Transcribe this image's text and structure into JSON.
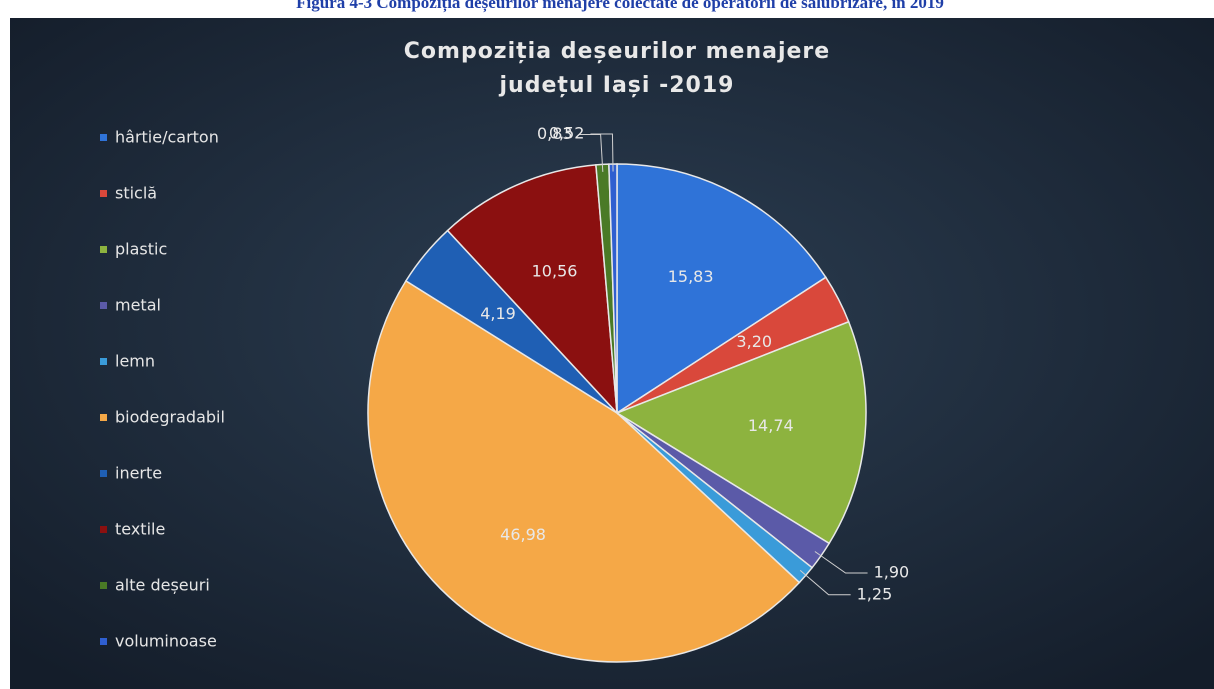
{
  "caption": "Figura 4-3 Compoziția deșeurilor menajere colectate de operatorii de salubrizare, în 2019",
  "chart_data": {
    "type": "pie",
    "title": [
      "Compoziția deșeurilor menajere",
      "județul Iași -2019"
    ],
    "categories": [
      "hârtie/carton",
      "sticlă",
      "plastic",
      "metal",
      "lemn",
      "biodegradabil",
      "inerte",
      "textile",
      "alte deșeuri",
      "voluminoase"
    ],
    "values": [
      15.83,
      3.2,
      14.74,
      1.9,
      1.25,
      46.98,
      4.19,
      10.56,
      0.83,
      0.52
    ],
    "value_labels": [
      "15,83",
      "3,20",
      "14,74",
      "1,90",
      "1,25",
      "46,98",
      "4,19",
      "10,56",
      "0,83",
      "0,52"
    ],
    "colors": [
      "#2f73d8",
      "#d9483b",
      "#8db33f",
      "#5b5aa8",
      "#3a9bd9",
      "#f5a847",
      "#1f5fb4",
      "#8b1010",
      "#4a7a26",
      "#2f5fd0"
    ],
    "legend": "left"
  }
}
